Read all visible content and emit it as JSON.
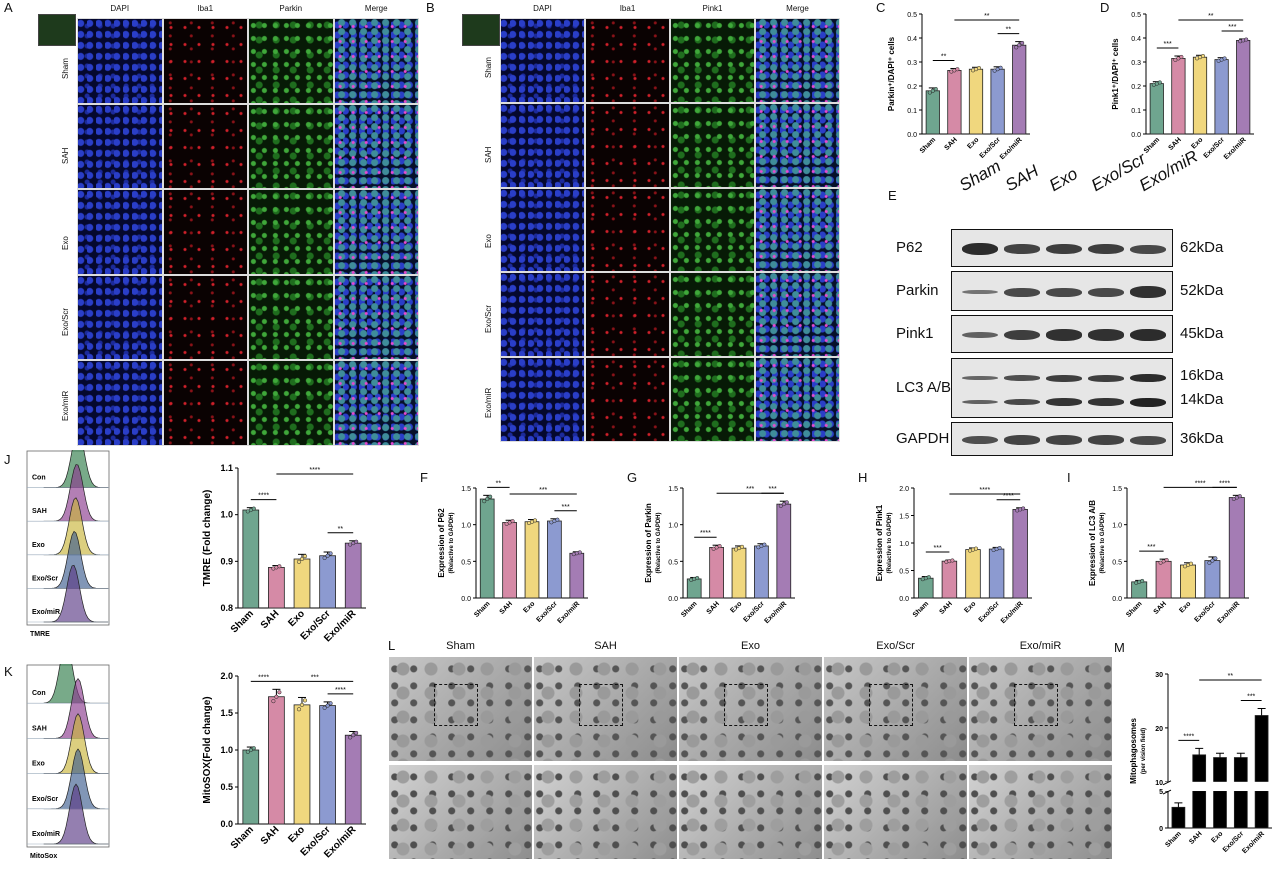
{
  "panel_letters": {
    "A": "A",
    "B": "B",
    "C": "C",
    "D": "D",
    "E": "E",
    "F": "F",
    "G": "G",
    "H": "H",
    "I": "I",
    "J": "J",
    "K": "K",
    "L": "L",
    "M": "M"
  },
  "panel_a": {
    "columns": [
      "DAPI",
      "Iba1",
      "Parkin",
      "Merge"
    ],
    "rows": [
      "Sham",
      "SAH",
      "Exo",
      "Exo/Scr",
      "Exo/miR"
    ]
  },
  "panel_b": {
    "columns": [
      "DAPI",
      "Iba1",
      "Pink1",
      "Merge"
    ],
    "rows": [
      "Sham",
      "SAH",
      "Exo",
      "Exo/Scr",
      "Exo/miR"
    ]
  },
  "western": {
    "groups": [
      "Sham",
      "SAH",
      "Exo",
      "Exo/Scr",
      "Exo/miR"
    ],
    "proteins": [
      {
        "name": "P62",
        "kda": [
          "62kDa"
        ]
      },
      {
        "name": "Parkin",
        "kda": [
          "52kDa"
        ]
      },
      {
        "name": "Pink1",
        "kda": [
          "45kDa"
        ]
      },
      {
        "name": "LC3 A/B",
        "kda": [
          "16kDa",
          "14kDa"
        ]
      },
      {
        "name": "GAPDH",
        "kda": [
          "36kDa"
        ]
      }
    ]
  },
  "flow_j": {
    "labels": [
      "Con",
      "SAH",
      "Exo",
      "Exo/Scr",
      "Exo/miR"
    ],
    "axis": "TMRE",
    "colors": [
      "#2f7d4a",
      "#8a3a8e",
      "#c9b63a",
      "#3d5e8f",
      "#5a3a86"
    ]
  },
  "flow_k": {
    "labels": [
      "Con",
      "SAH",
      "Exo",
      "Exo/Scr",
      "Exo/miR"
    ],
    "axis": "MitoSox",
    "colors": [
      "#2f7d4a",
      "#8a3a8e",
      "#c9b63a",
      "#3d5e8f",
      "#5a3a86"
    ]
  },
  "em": {
    "groups": [
      "Sham",
      "SAH",
      "Exo",
      "Exo/Scr",
      "Exo/miR"
    ]
  },
  "bar_colors": [
    "#6fa58f",
    "#d58aa6",
    "#f0d77e",
    "#8c9ad0",
    "#a47cb4"
  ],
  "chart_data": [
    {
      "panel": "C",
      "type": "bar",
      "categories": [
        "Sham",
        "SAH",
        "Exo",
        "Exo/Scr",
        "Exo/miR"
      ],
      "values": [
        0.18,
        0.265,
        0.27,
        0.27,
        0.37
      ],
      "errors": [
        0.012,
        0.008,
        0.008,
        0.01,
        0.015
      ],
      "ylabel": "Parkin⁺/DAPI⁺ cells",
      "ylim": [
        0,
        0.5
      ],
      "yticks": [
        "0.0",
        "0.1",
        "0.2",
        "0.3",
        "0.4",
        "0.5"
      ],
      "sig": [
        {
          "a": 0,
          "b": 1,
          "text": "**"
        },
        {
          "a": 1,
          "b": 4,
          "text": "**"
        },
        {
          "a": 3,
          "b": 4,
          "text": "**"
        }
      ]
    },
    {
      "panel": "D",
      "type": "bar",
      "categories": [
        "Sham",
        "SAH",
        "Exo",
        "Exo/Scr",
        "Exo/miR"
      ],
      "values": [
        0.21,
        0.315,
        0.32,
        0.31,
        0.39
      ],
      "errors": [
        0.008,
        0.01,
        0.008,
        0.008,
        0.006
      ],
      "ylabel": "Pink1⁺/DAPI⁺ cells",
      "ylim": [
        0,
        0.5
      ],
      "yticks": [
        "0.0",
        "0.1",
        "0.2",
        "0.3",
        "0.4",
        "0.5"
      ],
      "sig": [
        {
          "a": 0,
          "b": 1,
          "text": "***"
        },
        {
          "a": 1,
          "b": 4,
          "text": "**"
        },
        {
          "a": 3,
          "b": 4,
          "text": "***"
        }
      ]
    },
    {
      "panel": "F",
      "type": "bar",
      "categories": [
        "Sham",
        "SAH",
        "Exo",
        "Exo/Scr",
        "Exo/miR"
      ],
      "values": [
        1.35,
        1.03,
        1.04,
        1.05,
        0.61
      ],
      "errors": [
        0.05,
        0.03,
        0.03,
        0.03,
        0.02
      ],
      "ylabel": "Expression of P62",
      "ysub": "(Relactive to GAPDH)",
      "ylim": [
        0,
        1.5
      ],
      "yticks": [
        "0.0",
        "0.5",
        "1.0",
        "1.5"
      ],
      "sig": [
        {
          "a": 0,
          "b": 1,
          "text": "**"
        },
        {
          "a": 1,
          "b": 4,
          "text": "***"
        },
        {
          "a": 3,
          "b": 4,
          "text": "***"
        }
      ]
    },
    {
      "panel": "G",
      "type": "bar",
      "categories": [
        "Sham",
        "SAH",
        "Exo",
        "Exo/Scr",
        "Exo/miR"
      ],
      "values": [
        0.26,
        0.69,
        0.68,
        0.71,
        1.28
      ],
      "errors": [
        0.02,
        0.03,
        0.03,
        0.03,
        0.04
      ],
      "ylabel": "Expression of Parkin",
      "ysub": "(Relactive to GAPDH)",
      "ylim": [
        0,
        1.5
      ],
      "yticks": [
        "0.0",
        "0.5",
        "1.0",
        "1.5"
      ],
      "sig": [
        {
          "a": 0,
          "b": 1,
          "text": "****"
        },
        {
          "a": 1,
          "b": 4,
          "text": "***"
        },
        {
          "a": 3,
          "b": 4,
          "text": "***"
        }
      ]
    },
    {
      "panel": "H",
      "type": "bar",
      "categories": [
        "Sham",
        "SAH",
        "Exo",
        "Exo/Scr",
        "Exo/miR"
      ],
      "values": [
        0.36,
        0.67,
        0.88,
        0.89,
        1.61
      ],
      "errors": [
        0.03,
        0.02,
        0.03,
        0.03,
        0.03
      ],
      "ylabel": "Expression of Pink1",
      "ysub": "(Relactive to GAPDH)",
      "ylim": [
        0,
        2.0
      ],
      "yticks": [
        "0.0",
        "0.5",
        "1.0",
        "1.5",
        "2.0"
      ],
      "sig": [
        {
          "a": 0,
          "b": 1,
          "text": "***"
        },
        {
          "a": 1,
          "b": 4,
          "text": "****"
        },
        {
          "a": 3,
          "b": 4,
          "text": "****"
        }
      ]
    },
    {
      "panel": "I",
      "type": "bar",
      "categories": [
        "Sham",
        "SAH",
        "Exo",
        "Exo/Scr",
        "Exo/miR"
      ],
      "values": [
        0.22,
        0.5,
        0.45,
        0.51,
        1.37
      ],
      "errors": [
        0.02,
        0.03,
        0.03,
        0.05,
        0.03
      ],
      "ylabel": "Expression of LC3 A/B",
      "ysub": "(Relactive to GAPDH)",
      "ylim": [
        0,
        1.5
      ],
      "yticks": [
        "0.0",
        "0.5",
        "1.0",
        "1.5"
      ],
      "sig": [
        {
          "a": 0,
          "b": 1,
          "text": "***"
        },
        {
          "a": 1,
          "b": 4,
          "text": "****"
        },
        {
          "a": 3,
          "b": 4,
          "text": "****"
        }
      ]
    },
    {
      "panel": "J",
      "type": "bar",
      "categories": [
        "Sham",
        "SAH",
        "Exo",
        "Exo/Scr",
        "Exo/miR"
      ],
      "values": [
        1.01,
        0.887,
        0.905,
        0.912,
        0.939
      ],
      "errors": [
        0.005,
        0.004,
        0.01,
        0.008,
        0.005
      ],
      "ylabel": "TMRE (Fold change)",
      "ylim": [
        0.8,
        1.1
      ],
      "yticks": [
        "0.8",
        "0.9",
        "1.0",
        "1.1"
      ],
      "sig": [
        {
          "a": 0,
          "b": 1,
          "text": "****"
        },
        {
          "a": 1,
          "b": 4,
          "text": "****"
        },
        {
          "a": 3,
          "b": 4,
          "text": "**"
        }
      ]
    },
    {
      "panel": "K",
      "type": "bar",
      "categories": [
        "Sham",
        "SAH",
        "Exo",
        "Exo/Scr",
        "Exo/miR"
      ],
      "values": [
        1.0,
        1.72,
        1.61,
        1.6,
        1.2
      ],
      "errors": [
        0.04,
        0.1,
        0.1,
        0.05,
        0.05
      ],
      "ylabel": "MitoSOX(Fold change)",
      "ylim": [
        0,
        2.0
      ],
      "yticks": [
        "0.0",
        "0.5",
        "1.0",
        "1.5",
        "2.0"
      ],
      "sig": [
        {
          "a": 0,
          "b": 1,
          "text": "****"
        },
        {
          "a": 1,
          "b": 4,
          "text": "***"
        },
        {
          "a": 3,
          "b": 4,
          "text": "****"
        }
      ]
    },
    {
      "panel": "M",
      "type": "bar",
      "categories": [
        "Sham",
        "SAH",
        "Exo",
        "Exo/Scr",
        "Exo/miR"
      ],
      "values": [
        2.8,
        15.0,
        14.5,
        14.5,
        22.3
      ],
      "errors": [
        0.6,
        1.2,
        0.8,
        0.8,
        1.3
      ],
      "ylabel": "Mitophagosomes",
      "ysub": "(per vision field)",
      "ylim": [
        0,
        30
      ],
      "yticks": [
        "0",
        "5",
        "10",
        "20",
        "30"
      ],
      "axis_break": [
        5,
        10
      ],
      "sig": [
        {
          "a": 0,
          "b": 1,
          "text": "****"
        },
        {
          "a": 1,
          "b": 4,
          "text": "**"
        },
        {
          "a": 3,
          "b": 4,
          "text": "***"
        }
      ]
    }
  ]
}
